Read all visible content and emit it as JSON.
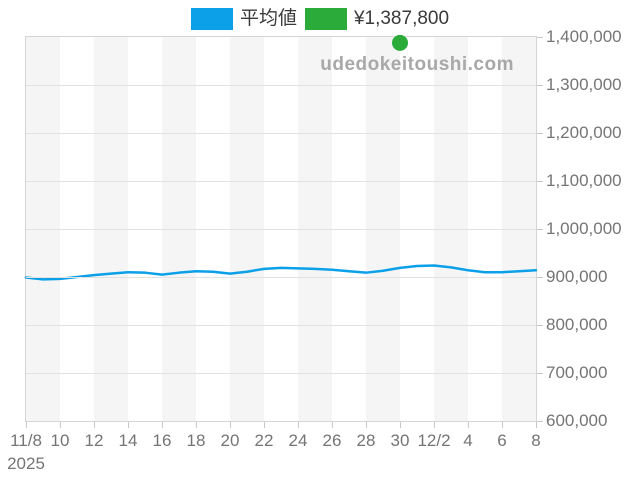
{
  "watermark": "udedokeitoushi.com",
  "legend": [
    {
      "label": "平均値",
      "color": "#0ba0e8"
    },
    {
      "label": "¥1,387,800",
      "color": "#2bab3a"
    }
  ],
  "colors": {
    "line_blue": "#0ba0e8",
    "dot_green": "#2bab3a",
    "axis_text": "#757575",
    "gridline": "#e2e2e2",
    "stripe_gray": "#f5f5f5",
    "stripe_white": "#ffffff",
    "plot_border": "#d5d5d5",
    "watermark_gray": "#a8a8a8"
  },
  "chart_data": {
    "type": "line",
    "title": "平均値",
    "year": "2025",
    "x": [
      "11/8",
      "11/9",
      "11/10",
      "11/11",
      "11/12",
      "11/13",
      "11/14",
      "11/15",
      "11/16",
      "11/17",
      "11/18",
      "11/19",
      "11/20",
      "11/21",
      "11/22",
      "11/23",
      "11/24",
      "11/25",
      "11/26",
      "11/27",
      "11/28",
      "11/29",
      "11/30",
      "12/1",
      "12/2",
      "12/3",
      "12/4",
      "12/5",
      "12/6",
      "12/7",
      "12/8"
    ],
    "x_tick_labels": [
      "11/8",
      "10",
      "12",
      "14",
      "16",
      "18",
      "20",
      "22",
      "24",
      "26",
      "28",
      "30",
      "12/2",
      "4",
      "6",
      "8"
    ],
    "x_sub_label": "2025",
    "series": [
      {
        "name": "平均値",
        "type": "line",
        "color": "#0ba0e8",
        "values": [
          899000,
          895000,
          896000,
          900000,
          904000,
          907000,
          910000,
          909000,
          905000,
          909000,
          912000,
          911000,
          907000,
          911000,
          917000,
          919000,
          918000,
          917000,
          915000,
          912000,
          909000,
          913000,
          919000,
          923000,
          924000,
          920000,
          914000,
          910000,
          910000,
          912000,
          914000
        ]
      }
    ],
    "scatter_points": [
      {
        "x": "11/30",
        "value": 1387800,
        "color": "#2bab3a",
        "label": "¥1,387,800"
      }
    ],
    "ylim": [
      600000,
      1400000
    ],
    "y_ticks": [
      1400000,
      1300000,
      1200000,
      1100000,
      1000000,
      900000,
      800000,
      700000,
      600000
    ],
    "y_tick_labels": [
      "1,400,000",
      "1,300,000",
      "1,200,000",
      "1,100,000",
      "1,000,000",
      "900,000",
      "800,000",
      "700,000",
      "600,000"
    ],
    "grid": "horizontal",
    "legend_position": "top",
    "plot_bg_stripes": [
      "#f5f5f5",
      "#ffffff"
    ]
  }
}
